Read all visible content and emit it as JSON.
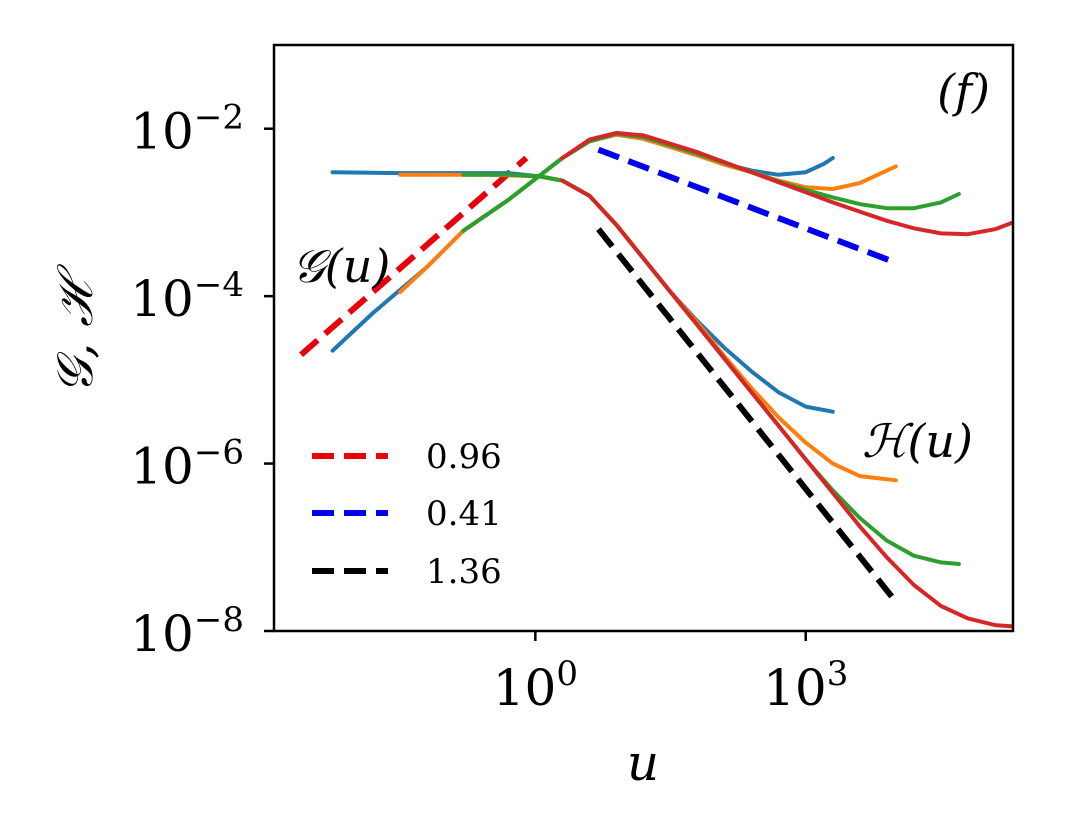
{
  "chart_data": {
    "type": "line",
    "panel_label": "(f)",
    "xlabel": "u",
    "ylabel": "𝒢, ℋ",
    "xscale": "log",
    "yscale": "log",
    "xlim_log10": [
      -2.9,
      5.3
    ],
    "ylim_log10": [
      -8,
      -1
    ],
    "x_ticks": [
      {
        "base": "10",
        "exp": "0",
        "log10": 0
      },
      {
        "base": "10",
        "exp": "3",
        "log10": 3
      }
    ],
    "y_ticks": [
      {
        "base": "10",
        "exp": "−2",
        "log10": -2
      },
      {
        "base": "10",
        "exp": "−4",
        "log10": -4
      },
      {
        "base": "10",
        "exp": "−6",
        "log10": -6
      },
      {
        "base": "10",
        "exp": "−8",
        "log10": -8
      }
    ],
    "annotations": [
      {
        "text": "𝒢(u)",
        "name": "annotation-g-of-u"
      },
      {
        "text": "ℋ(u)",
        "name": "annotation-h-of-u"
      }
    ],
    "legend": {
      "placement": "lower-left",
      "entries": [
        {
          "label": "0.96",
          "color": "#e8000b"
        },
        {
          "label": "0.41",
          "color": "#0000ee"
        },
        {
          "label": "1.36",
          "color": "#000000"
        }
      ]
    },
    "reference_lines": [
      {
        "name": "ref-line-slope-0.96",
        "color": "#e8000b",
        "points": [
          [
            -2.6,
            -4.7
          ],
          [
            -0.1,
            -2.35
          ]
        ]
      },
      {
        "name": "ref-line-slope-0.41",
        "color": "#0000ee",
        "points": [
          [
            0.7,
            -2.25
          ],
          [
            4.0,
            -3.6
          ]
        ]
      },
      {
        "name": "ref-line-slope-1.36",
        "color": "#000000",
        "points": [
          [
            0.7,
            -3.2
          ],
          [
            4.0,
            -7.65
          ]
        ]
      }
    ],
    "series": [
      {
        "name": "series-blue",
        "color": "#1f77b4",
        "G": [
          [
            -2.25,
            -4.65
          ],
          [
            -1.8,
            -4.2
          ],
          [
            -1.2,
            -3.65
          ],
          [
            -0.8,
            -3.22
          ],
          [
            -0.3,
            -2.85
          ],
          [
            0,
            -2.6
          ],
          [
            0.3,
            -2.35
          ],
          [
            0.6,
            -2.15
          ],
          [
            0.9,
            -2.07
          ],
          [
            1.2,
            -2.12
          ],
          [
            1.5,
            -2.22
          ],
          [
            1.8,
            -2.32
          ],
          [
            2.1,
            -2.42
          ],
          [
            2.4,
            -2.5
          ],
          [
            2.7,
            -2.55
          ],
          [
            3.0,
            -2.52
          ],
          [
            3.2,
            -2.42
          ],
          [
            3.3,
            -2.35
          ]
        ],
        "H": [
          [
            -2.25,
            -2.52
          ],
          [
            -1.5,
            -2.53
          ],
          [
            -0.8,
            -2.53
          ],
          [
            -0.3,
            -2.53
          ],
          [
            0.05,
            -2.57
          ],
          [
            0.3,
            -2.62
          ],
          [
            0.6,
            -2.8
          ],
          [
            0.9,
            -3.15
          ],
          [
            1.2,
            -3.55
          ],
          [
            1.5,
            -3.95
          ],
          [
            1.8,
            -4.3
          ],
          [
            2.1,
            -4.62
          ],
          [
            2.4,
            -4.9
          ],
          [
            2.7,
            -5.15
          ],
          [
            3.0,
            -5.32
          ],
          [
            3.3,
            -5.38
          ]
        ]
      },
      {
        "name": "series-orange",
        "color": "#ff7f0e",
        "G": [
          [
            -1.5,
            -3.95
          ],
          [
            -1.2,
            -3.65
          ],
          [
            -0.8,
            -3.22
          ],
          [
            -0.3,
            -2.85
          ],
          [
            0,
            -2.6
          ],
          [
            0.3,
            -2.35
          ],
          [
            0.6,
            -2.15
          ],
          [
            0.9,
            -2.07
          ],
          [
            1.2,
            -2.12
          ],
          [
            1.5,
            -2.22
          ],
          [
            1.8,
            -2.32
          ],
          [
            2.1,
            -2.43
          ],
          [
            2.4,
            -2.52
          ],
          [
            2.7,
            -2.62
          ],
          [
            3.0,
            -2.7
          ],
          [
            3.3,
            -2.72
          ],
          [
            3.6,
            -2.65
          ],
          [
            3.9,
            -2.5
          ],
          [
            4.0,
            -2.45
          ]
        ],
        "H": [
          [
            -1.5,
            -2.55
          ],
          [
            -1.0,
            -2.55
          ],
          [
            -0.5,
            -2.55
          ],
          [
            0.05,
            -2.57
          ],
          [
            0.3,
            -2.62
          ],
          [
            0.6,
            -2.8
          ],
          [
            0.9,
            -3.15
          ],
          [
            1.2,
            -3.55
          ],
          [
            1.5,
            -3.95
          ],
          [
            1.8,
            -4.32
          ],
          [
            2.1,
            -4.72
          ],
          [
            2.4,
            -5.1
          ],
          [
            2.7,
            -5.45
          ],
          [
            3.0,
            -5.75
          ],
          [
            3.3,
            -6.0
          ],
          [
            3.6,
            -6.15
          ],
          [
            4.0,
            -6.2
          ]
        ]
      },
      {
        "name": "series-green",
        "color": "#2ca02c",
        "G": [
          [
            -0.8,
            -3.22
          ],
          [
            -0.3,
            -2.85
          ],
          [
            0,
            -2.6
          ],
          [
            0.3,
            -2.35
          ],
          [
            0.6,
            -2.15
          ],
          [
            0.9,
            -2.06
          ],
          [
            1.2,
            -2.1
          ],
          [
            1.5,
            -2.2
          ],
          [
            1.8,
            -2.3
          ],
          [
            2.1,
            -2.41
          ],
          [
            2.4,
            -2.52
          ],
          [
            2.7,
            -2.63
          ],
          [
            3.0,
            -2.73
          ],
          [
            3.3,
            -2.82
          ],
          [
            3.6,
            -2.9
          ],
          [
            3.9,
            -2.95
          ],
          [
            4.2,
            -2.95
          ],
          [
            4.5,
            -2.88
          ],
          [
            4.7,
            -2.78
          ]
        ],
        "H": [
          [
            -0.8,
            -2.55
          ],
          [
            -0.3,
            -2.55
          ],
          [
            0.05,
            -2.57
          ],
          [
            0.3,
            -2.62
          ],
          [
            0.6,
            -2.8
          ],
          [
            0.9,
            -3.15
          ],
          [
            1.2,
            -3.55
          ],
          [
            1.5,
            -3.95
          ],
          [
            1.8,
            -4.35
          ],
          [
            2.1,
            -4.75
          ],
          [
            2.4,
            -5.15
          ],
          [
            2.7,
            -5.55
          ],
          [
            3.0,
            -5.95
          ],
          [
            3.3,
            -6.32
          ],
          [
            3.6,
            -6.65
          ],
          [
            3.9,
            -6.92
          ],
          [
            4.2,
            -7.1
          ],
          [
            4.5,
            -7.18
          ],
          [
            4.7,
            -7.2
          ]
        ]
      },
      {
        "name": "series-red",
        "color": "#d62728",
        "G": [
          [
            0.3,
            -2.35
          ],
          [
            0.6,
            -2.13
          ],
          [
            0.9,
            -2.05
          ],
          [
            1.2,
            -2.08
          ],
          [
            1.5,
            -2.18
          ],
          [
            1.8,
            -2.28
          ],
          [
            2.1,
            -2.4
          ],
          [
            2.4,
            -2.52
          ],
          [
            2.7,
            -2.64
          ],
          [
            3.0,
            -2.76
          ],
          [
            3.3,
            -2.88
          ],
          [
            3.6,
            -2.99
          ],
          [
            3.9,
            -3.1
          ],
          [
            4.2,
            -3.19
          ],
          [
            4.5,
            -3.25
          ],
          [
            4.8,
            -3.26
          ],
          [
            5.1,
            -3.2
          ],
          [
            5.4,
            -3.08
          ],
          [
            5.5,
            -3.05
          ]
        ],
        "H": [
          [
            0.3,
            -2.62
          ],
          [
            0.6,
            -2.8
          ],
          [
            0.9,
            -3.15
          ],
          [
            1.2,
            -3.55
          ],
          [
            1.5,
            -3.95
          ],
          [
            1.8,
            -4.35
          ],
          [
            2.1,
            -4.75
          ],
          [
            2.4,
            -5.15
          ],
          [
            2.7,
            -5.55
          ],
          [
            3.0,
            -5.95
          ],
          [
            3.3,
            -6.35
          ],
          [
            3.6,
            -6.75
          ],
          [
            3.9,
            -7.12
          ],
          [
            4.2,
            -7.45
          ],
          [
            4.5,
            -7.7
          ],
          [
            4.8,
            -7.85
          ],
          [
            5.1,
            -7.93
          ],
          [
            5.5,
            -7.96
          ]
        ]
      }
    ]
  }
}
